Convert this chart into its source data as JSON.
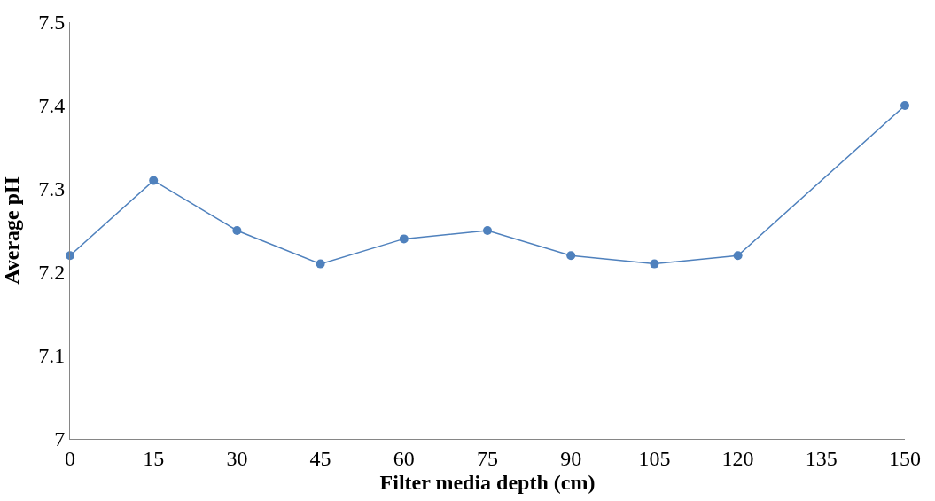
{
  "chart_data": {
    "type": "line",
    "xlabel": "Filter media depth (cm)",
    "ylabel": "Average pH",
    "x": [
      0,
      15,
      30,
      45,
      60,
      75,
      90,
      105,
      120,
      150
    ],
    "series": [
      {
        "color": "#4f81bd",
        "values": [
          7.22,
          7.31,
          7.25,
          7.21,
          7.24,
          7.25,
          7.22,
          7.21,
          7.22,
          7.4
        ]
      }
    ],
    "xlim": [
      0,
      150
    ],
    "xticks": [
      0,
      15,
      30,
      45,
      60,
      75,
      90,
      105,
      120,
      135,
      150
    ],
    "ylim": [
      7,
      7.5
    ],
    "yticks": [
      7,
      7.1,
      7.2,
      7.3,
      7.4,
      7.5
    ],
    "marker": "circle",
    "line_style": "solid"
  }
}
